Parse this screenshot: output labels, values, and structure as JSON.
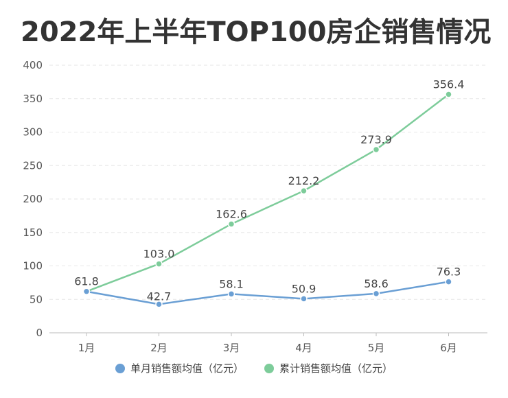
{
  "chart_data": {
    "type": "line",
    "title": "2022年上半年TOP100房企销售情况",
    "categories": [
      "1月",
      "2月",
      "3月",
      "4月",
      "5月",
      "6月"
    ],
    "yticks": [
      0,
      50,
      100,
      150,
      200,
      250,
      300,
      350,
      400
    ],
    "ylim": [
      0,
      400
    ],
    "grid": true,
    "legend_position": "bottom",
    "series": [
      {
        "name": "单月销售额均值（亿元）",
        "color": "#6a9fd4",
        "values": [
          61.8,
          42.7,
          58.1,
          50.9,
          58.6,
          76.3
        ],
        "labels": [
          "61.8",
          "42.7",
          "58.1",
          "50.9",
          "58.6",
          "76.3"
        ]
      },
      {
        "name": "累计销售额均值（亿元）",
        "color": "#7dcc9a",
        "values": [
          61.8,
          103.0,
          162.6,
          212.2,
          273.9,
          356.4
        ],
        "labels": [
          "",
          "103.0",
          "162.6",
          "212.2",
          "273.9",
          "356.4"
        ]
      }
    ]
  }
}
